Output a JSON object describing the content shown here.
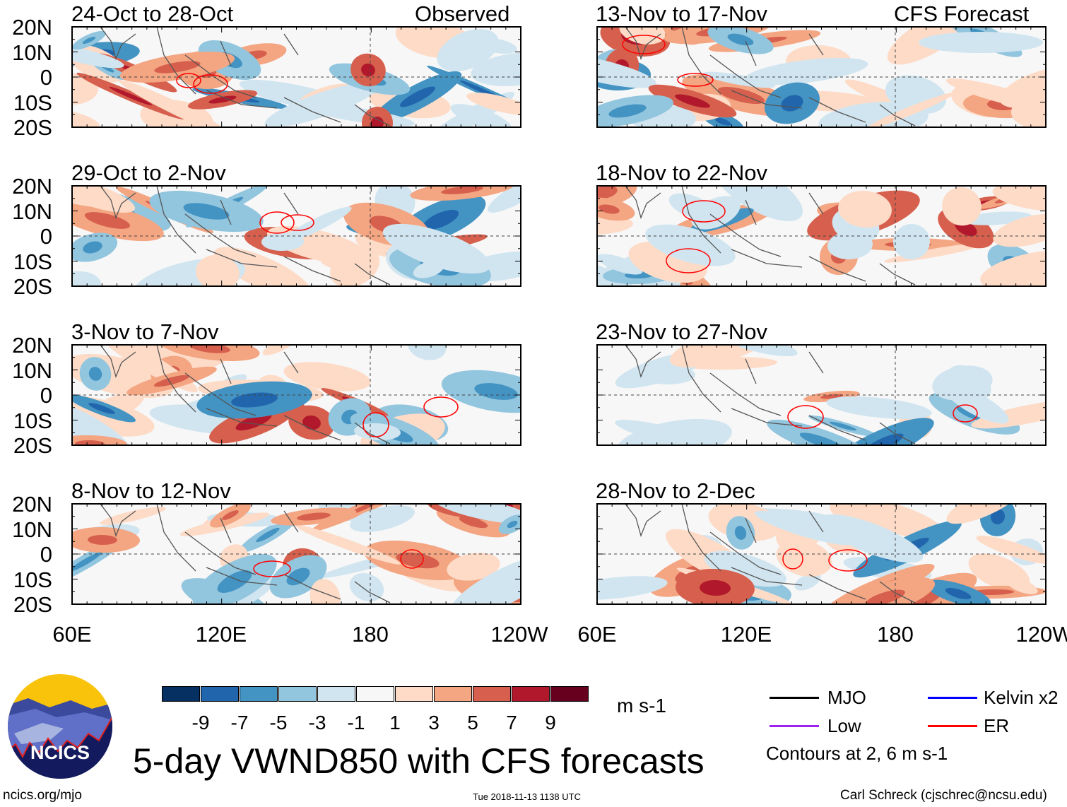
{
  "header": {
    "observed_label": "Observed",
    "forecast_label": "CFS Forecast"
  },
  "panels_left": [
    {
      "title": "24-Oct to 28-Oct"
    },
    {
      "title": "29-Oct to 2-Nov"
    },
    {
      "title": "3-Nov to 7-Nov"
    },
    {
      "title": "8-Nov to 12-Nov"
    }
  ],
  "panels_right": [
    {
      "title": "13-Nov to 17-Nov"
    },
    {
      "title": "18-Nov to 22-Nov"
    },
    {
      "title": "23-Nov to 27-Nov"
    },
    {
      "title": "28-Nov to 2-Dec"
    }
  ],
  "lat_labels": [
    "20N",
    "10N",
    "0",
    "10S",
    "20S"
  ],
  "lon_labels": [
    "60E",
    "120E",
    "180",
    "120W"
  ],
  "colorbar": {
    "colors": [
      "#053061",
      "#2166ac",
      "#4393c3",
      "#92c5de",
      "#d1e5f0",
      "#f7f7f7",
      "#fddbc7",
      "#f4a582",
      "#d6604d",
      "#b2182b",
      "#67001f"
    ],
    "labels": [
      "-9",
      "-7",
      "-5",
      "-3",
      "-1",
      "1",
      "3",
      "5",
      "7",
      "9"
    ],
    "units": "m s-1"
  },
  "legend": {
    "items": [
      {
        "label": "MJO",
        "color": "#000000"
      },
      {
        "label": "Kelvin x2",
        "color": "#0000ff"
      },
      {
        "label": "Low",
        "color": "#a020f0"
      },
      {
        "label": "ER",
        "color": "#ff0000"
      }
    ],
    "contours_note": "Contours at 2, 6 m s-1"
  },
  "logo": {
    "text": "NCICS"
  },
  "title": "5-day VWND850 with CFS forecasts",
  "footer": {
    "url": "ncics.org/mjo",
    "timestamp": "Tue 2018-11-13 1138 UTC",
    "credit": "Carl Schreck (cjschrec@ncsu.edu)"
  }
}
